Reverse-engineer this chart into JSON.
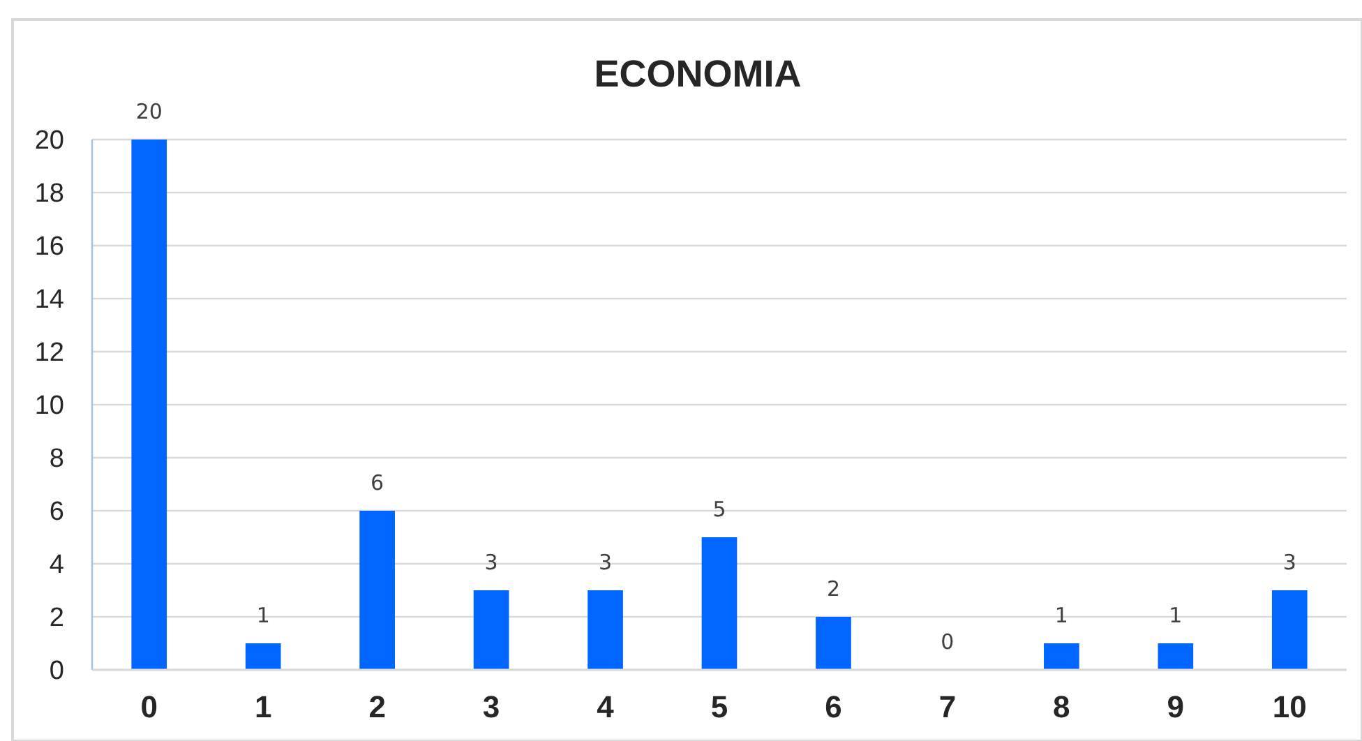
{
  "chart_data": {
    "type": "bar",
    "title": "ECONOMIA",
    "categories": [
      "0",
      "1",
      "2",
      "3",
      "4",
      "5",
      "6",
      "7",
      "8",
      "9",
      "10"
    ],
    "values": [
      20,
      1,
      6,
      3,
      3,
      5,
      2,
      0,
      1,
      1,
      3
    ],
    "color": "#0066ff",
    "ylim": [
      0,
      20
    ],
    "yticks": [
      0,
      2,
      4,
      6,
      8,
      10,
      12,
      14,
      16,
      18,
      20
    ],
    "grid": "y",
    "data_labels": true
  }
}
